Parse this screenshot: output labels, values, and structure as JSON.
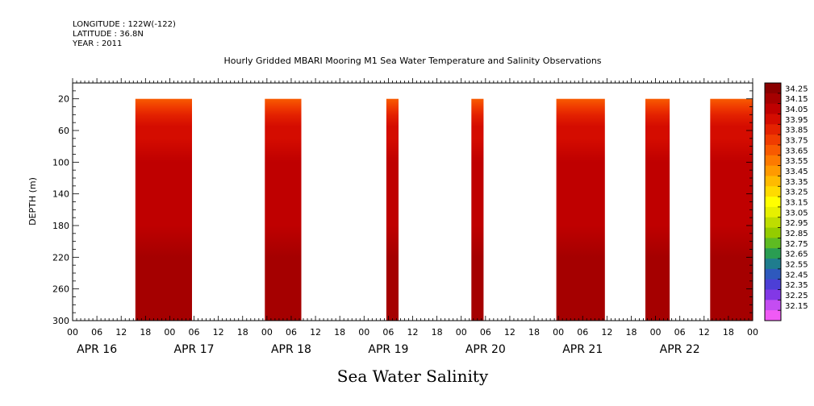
{
  "header": {
    "longitude": "LONGITUDE : 122W(-122)",
    "latitude": "LATITUDE : 36.8N",
    "year": "YEAR : 2011"
  },
  "chart_data": {
    "type": "heatmap",
    "title": "Hourly Gridded MBARI Mooring M1 Sea Water Temperature and Salinity Observations",
    "subtitle": "Sea Water Salinity",
    "ylabel": "DEPTH (m)",
    "ylim": [
      300,
      0
    ],
    "y_ticks": [
      20,
      60,
      100,
      140,
      180,
      220,
      260,
      300
    ],
    "y_tick_labels": [
      "20",
      "60",
      "100",
      "140",
      "180",
      "220",
      "260",
      "300"
    ],
    "x_hour_labels": [
      "00",
      "06",
      "12",
      "18",
      "00",
      "06",
      "12",
      "18",
      "00",
      "06",
      "12",
      "18",
      "00",
      "06",
      "12",
      "18",
      "00",
      "06",
      "12",
      "18",
      "00",
      "06",
      "12",
      "18",
      "00",
      "06",
      "12",
      "18",
      "00"
    ],
    "x_day_labels": [
      "APR 16",
      "APR 17",
      "APR 18",
      "APR 19",
      "APR 20",
      "APR 21",
      "APR 22"
    ],
    "x_range_hours": [
      0,
      168
    ],
    "depth_range": [
      20,
      300
    ],
    "data_segments": [
      {
        "start_hour": 15.5,
        "end_hour": 29.5
      },
      {
        "start_hour": 47.5,
        "end_hour": 56.5
      },
      {
        "start_hour": 77.5,
        "end_hour": 80.5
      },
      {
        "start_hour": 98.5,
        "end_hour": 101.5
      },
      {
        "start_hour": 119.5,
        "end_hour": 131.5
      },
      {
        "start_hour": 141.5,
        "end_hour": 147.5
      },
      {
        "start_hour": 157.5,
        "end_hour": 168
      }
    ],
    "depth_profile": [
      {
        "depth": 20,
        "value": 33.65
      },
      {
        "depth": 30,
        "value": 33.75
      },
      {
        "depth": 40,
        "value": 33.85
      },
      {
        "depth": 55,
        "value": 33.92
      },
      {
        "depth": 70,
        "value": 33.97
      },
      {
        "depth": 100,
        "value": 34.0
      },
      {
        "depth": 140,
        "value": 34.03
      },
      {
        "depth": 180,
        "value": 34.05
      },
      {
        "depth": 220,
        "value": 34.08
      },
      {
        "depth": 250,
        "value": 34.15
      },
      {
        "depth": 270,
        "value": 34.12
      },
      {
        "depth": 300,
        "value": 34.1
      }
    ],
    "colorbar": {
      "labels": [
        "34.25",
        "34.15",
        "34.05",
        "33.95",
        "33.85",
        "33.75",
        "33.65",
        "33.55",
        "33.45",
        "33.35",
        "33.25",
        "33.15",
        "33.05",
        "32.95",
        "32.85",
        "32.75",
        "32.65",
        "32.55",
        "32.45",
        "32.35",
        "32.25",
        "32.15"
      ],
      "colors": [
        "#8a0000",
        "#a50000",
        "#bf0000",
        "#d40c00",
        "#e42200",
        "#f03c00",
        "#f85a00",
        "#fd7a00",
        "#ff9a00",
        "#ffbb00",
        "#ffdb00",
        "#ffff00",
        "#e6f000",
        "#bedd00",
        "#94cc00",
        "#5ebb22",
        "#2a9d52",
        "#1f7d8e",
        "#2e59bd",
        "#4c3fd6",
        "#8238e6",
        "#c44df2",
        "#f05af5"
      ],
      "range": [
        32.15,
        34.25
      ]
    }
  }
}
